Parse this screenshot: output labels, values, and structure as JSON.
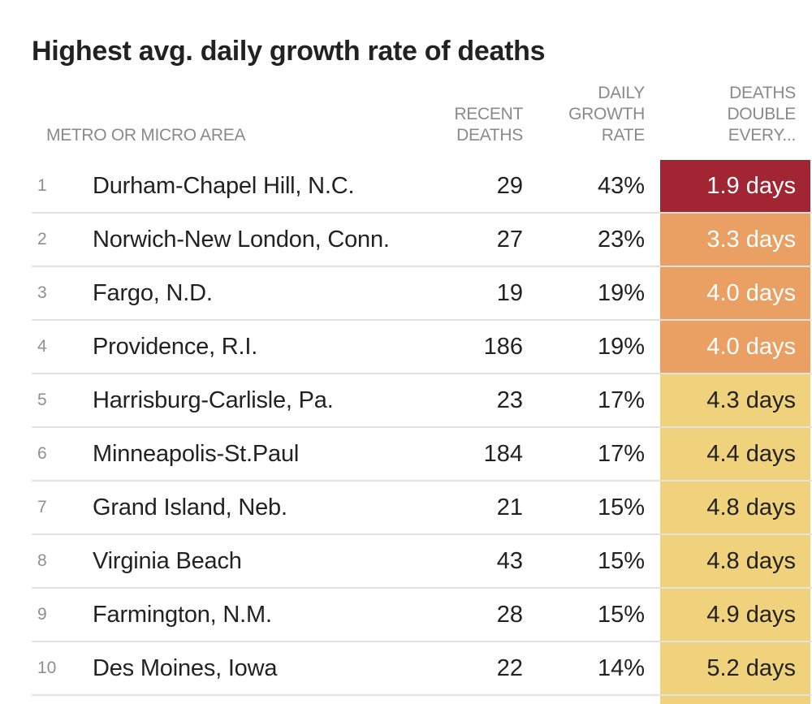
{
  "title": "Highest avg. daily growth rate of deaths",
  "columns": {
    "area": "METRO OR MICRO AREA",
    "deaths_line1": "RECENT",
    "deaths_line2": "DEATHS",
    "rate_line1": "DAILY",
    "rate_line2": "GROWTH",
    "rate_line3": "RATE",
    "double_line1": "DEATHS",
    "double_line2": "DOUBLE",
    "double_line3": "EVERY..."
  },
  "colors": {
    "fastest": "#a22533",
    "fast": "#e9a062",
    "moderate": "#f0d27c"
  },
  "rows": [
    {
      "rank": "1",
      "name": "Durham-Chapel Hill, N.C.",
      "deaths": "29",
      "rate": "43%",
      "double": "1.9 days",
      "level": "red"
    },
    {
      "rank": "2",
      "name": "Norwich-New London, Conn.",
      "deaths": "27",
      "rate": "23%",
      "double": "3.3 days",
      "level": "orange"
    },
    {
      "rank": "3",
      "name": "Fargo, N.D.",
      "deaths": "19",
      "rate": "19%",
      "double": "4.0 days",
      "level": "orange"
    },
    {
      "rank": "4",
      "name": "Providence, R.I.",
      "deaths": "186",
      "rate": "19%",
      "double": "4.0 days",
      "level": "orange"
    },
    {
      "rank": "5",
      "name": "Harrisburg-Carlisle, Pa.",
      "deaths": "23",
      "rate": "17%",
      "double": "4.3 days",
      "level": "yellow"
    },
    {
      "rank": "6",
      "name": "Minneapolis-St.Paul",
      "deaths": "184",
      "rate": "17%",
      "double": "4.4 days",
      "level": "yellow"
    },
    {
      "rank": "7",
      "name": "Grand Island, Neb.",
      "deaths": "21",
      "rate": "15%",
      "double": "4.8 days",
      "level": "yellow"
    },
    {
      "rank": "8",
      "name": "Virginia Beach",
      "deaths": "43",
      "rate": "15%",
      "double": "4.8 days",
      "level": "yellow"
    },
    {
      "rank": "9",
      "name": "Farmington, N.M.",
      "deaths": "28",
      "rate": "15%",
      "double": "4.9 days",
      "level": "yellow"
    },
    {
      "rank": "10",
      "name": "Des Moines, Iowa",
      "deaths": "22",
      "rate": "14%",
      "double": "5.2 days",
      "level": "yellow"
    }
  ]
}
